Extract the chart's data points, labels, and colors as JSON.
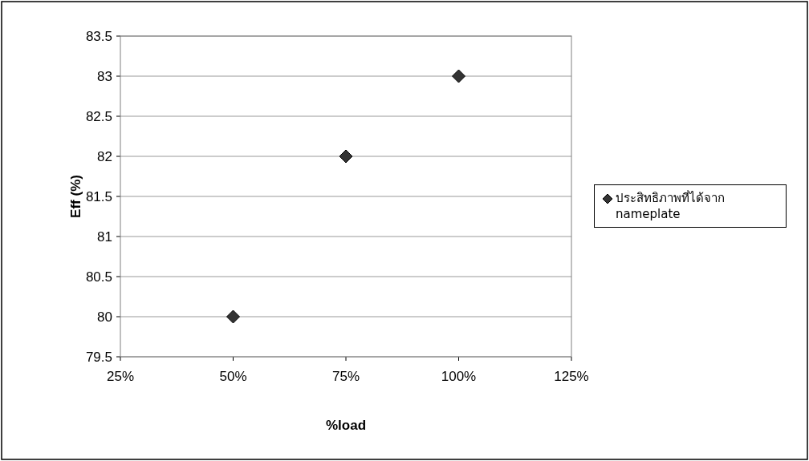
{
  "chart_data": {
    "type": "scatter",
    "xlabel": "%load",
    "ylabel": "Eff (%)",
    "x": [
      50,
      75,
      100
    ],
    "series": [
      {
        "name": "ประสิทธิภาพที่ได้จาก nameplate",
        "color": "#333333",
        "values": [
          80,
          82,
          83
        ]
      }
    ],
    "xlim": [
      25,
      125
    ],
    "xticks": [
      {
        "value": 25,
        "label": "25%"
      },
      {
        "value": 50,
        "label": "50%"
      },
      {
        "value": 75,
        "label": "75%"
      },
      {
        "value": 100,
        "label": "100%"
      },
      {
        "value": 125,
        "label": "125%"
      }
    ],
    "ylim": [
      79.5,
      83.5
    ],
    "yticks": [
      79.5,
      80,
      80.5,
      81,
      81.5,
      82,
      82.5,
      83,
      83.5
    ],
    "grid": "y",
    "legend": "right",
    "marker": "diamond"
  }
}
